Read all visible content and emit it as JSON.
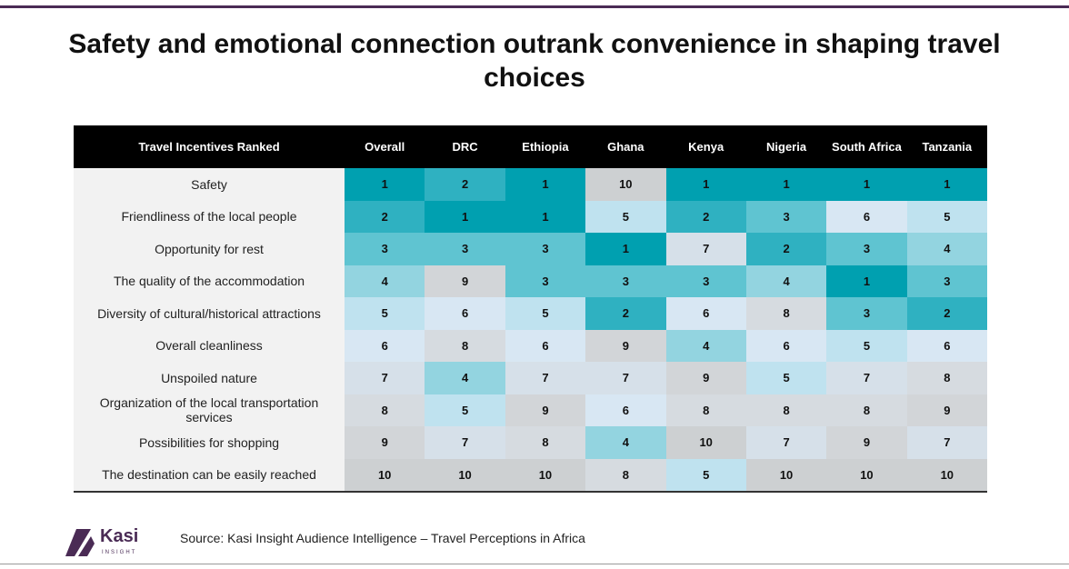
{
  "title": "Safety and emotional connection outrank convenience in shaping travel choices",
  "table": {
    "header": [
      "Travel Incentives Ranked",
      "Overall",
      "DRC",
      "Ethiopia",
      "Ghana",
      "Kenya",
      "Nigeria",
      "South Africa",
      "Tanzania"
    ],
    "rows": [
      {
        "label": "Safety",
        "values": [
          1,
          2,
          1,
          10,
          1,
          1,
          1,
          1
        ]
      },
      {
        "label": "Friendliness of the local people",
        "values": [
          2,
          1,
          1,
          5,
          2,
          3,
          6,
          5
        ]
      },
      {
        "label": "Opportunity for rest",
        "values": [
          3,
          3,
          3,
          1,
          7,
          2,
          3,
          4
        ]
      },
      {
        "label": "The quality of the accommodation",
        "values": [
          4,
          9,
          3,
          3,
          3,
          4,
          1,
          3
        ]
      },
      {
        "label": "Diversity of cultural/historical attractions",
        "values": [
          5,
          6,
          5,
          2,
          6,
          8,
          3,
          2
        ]
      },
      {
        "label": "Overall cleanliness",
        "values": [
          6,
          8,
          6,
          9,
          4,
          6,
          5,
          6
        ]
      },
      {
        "label": "Unspoiled nature",
        "values": [
          7,
          4,
          7,
          7,
          9,
          5,
          7,
          8
        ]
      },
      {
        "label": "Organization of the local transportation services",
        "values": [
          8,
          5,
          9,
          6,
          8,
          8,
          8,
          9
        ]
      },
      {
        "label": "Possibilities for shopping",
        "values": [
          9,
          7,
          8,
          4,
          10,
          7,
          9,
          7
        ]
      },
      {
        "label": "The destination can be easily reached",
        "values": [
          10,
          10,
          10,
          8,
          5,
          10,
          10,
          10
        ]
      }
    ],
    "rank_colors": [
      "#00a0b0",
      "#2fb1c1",
      "#5fc4d1",
      "#93d4e0",
      "#bfe2ef",
      "#d8e7f3",
      "#d6e0e9",
      "#d6dbe0",
      "#d2d5d8",
      "#cdd0d2"
    ]
  },
  "logo": {
    "name": "Kasi",
    "tagline": "INSIGHT"
  },
  "source": "Source: Kasi Insight Audience Intelligence – Travel Perceptions in Africa"
}
